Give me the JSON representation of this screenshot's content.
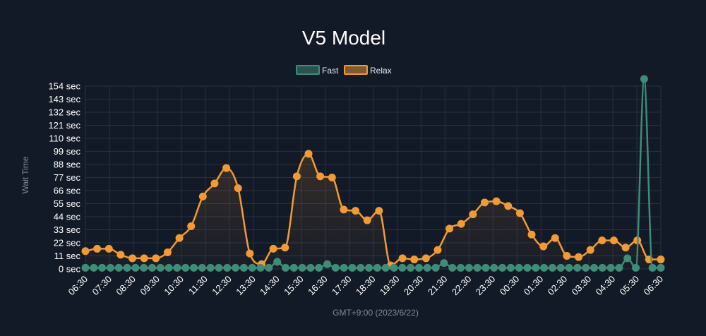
{
  "chart_data": {
    "type": "line",
    "title": "V5 Model",
    "xlabel": "GMT+9:00 (2023/6/22)",
    "ylabel": "Wait Time",
    "ylim": [
      0,
      154
    ],
    "y_ticks": [
      0,
      11,
      22,
      33,
      44,
      55,
      66,
      77,
      88,
      99,
      110,
      121,
      132,
      143,
      154
    ],
    "y_tick_suffix": " sec",
    "x_tick_labels": [
      "06:30",
      "07:30",
      "08:30",
      "09:30",
      "10:30",
      "11:30",
      "12:30",
      "13:30",
      "14:30",
      "15:30",
      "16:30",
      "17:30",
      "18:30",
      "19:30",
      "20:30",
      "21:30",
      "22:30",
      "23:30",
      "00:30",
      "01:30",
      "02:30",
      "03:30",
      "04:30",
      "05:30",
      "06:30"
    ],
    "grid": true,
    "legend_position": "top-center",
    "series": [
      {
        "name": "Fast",
        "color": "#3f8c78",
        "fill": false,
        "values": [
          1,
          1,
          1,
          1,
          1,
          1,
          1,
          1,
          1,
          1,
          1,
          1,
          1,
          1,
          1,
          1,
          1,
          1,
          1,
          1,
          1,
          1,
          1,
          6,
          1,
          1,
          1,
          1,
          1,
          4,
          1,
          1,
          1,
          1,
          1,
          1,
          1,
          1,
          1,
          1,
          1,
          1,
          1,
          5,
          1,
          1,
          1,
          1,
          1,
          1,
          1,
          1,
          1,
          1,
          1,
          1,
          1,
          1,
          1,
          1,
          1,
          1,
          1,
          1,
          1,
          9,
          1,
          160,
          1,
          1
        ]
      },
      {
        "name": "Relax",
        "color": "#f29a33",
        "fill": true,
        "values": [
          15,
          17,
          17,
          12,
          9,
          9,
          9,
          14,
          26,
          36,
          61,
          72,
          85,
          68,
          13,
          4,
          17,
          18,
          78,
          97,
          78,
          77,
          50,
          49,
          41,
          49,
          3,
          9,
          8,
          9,
          16,
          34,
          38,
          46,
          56,
          57,
          53,
          47,
          29,
          19,
          26,
          11,
          10,
          16,
          24,
          24,
          18,
          24,
          8,
          8
        ]
      }
    ]
  }
}
